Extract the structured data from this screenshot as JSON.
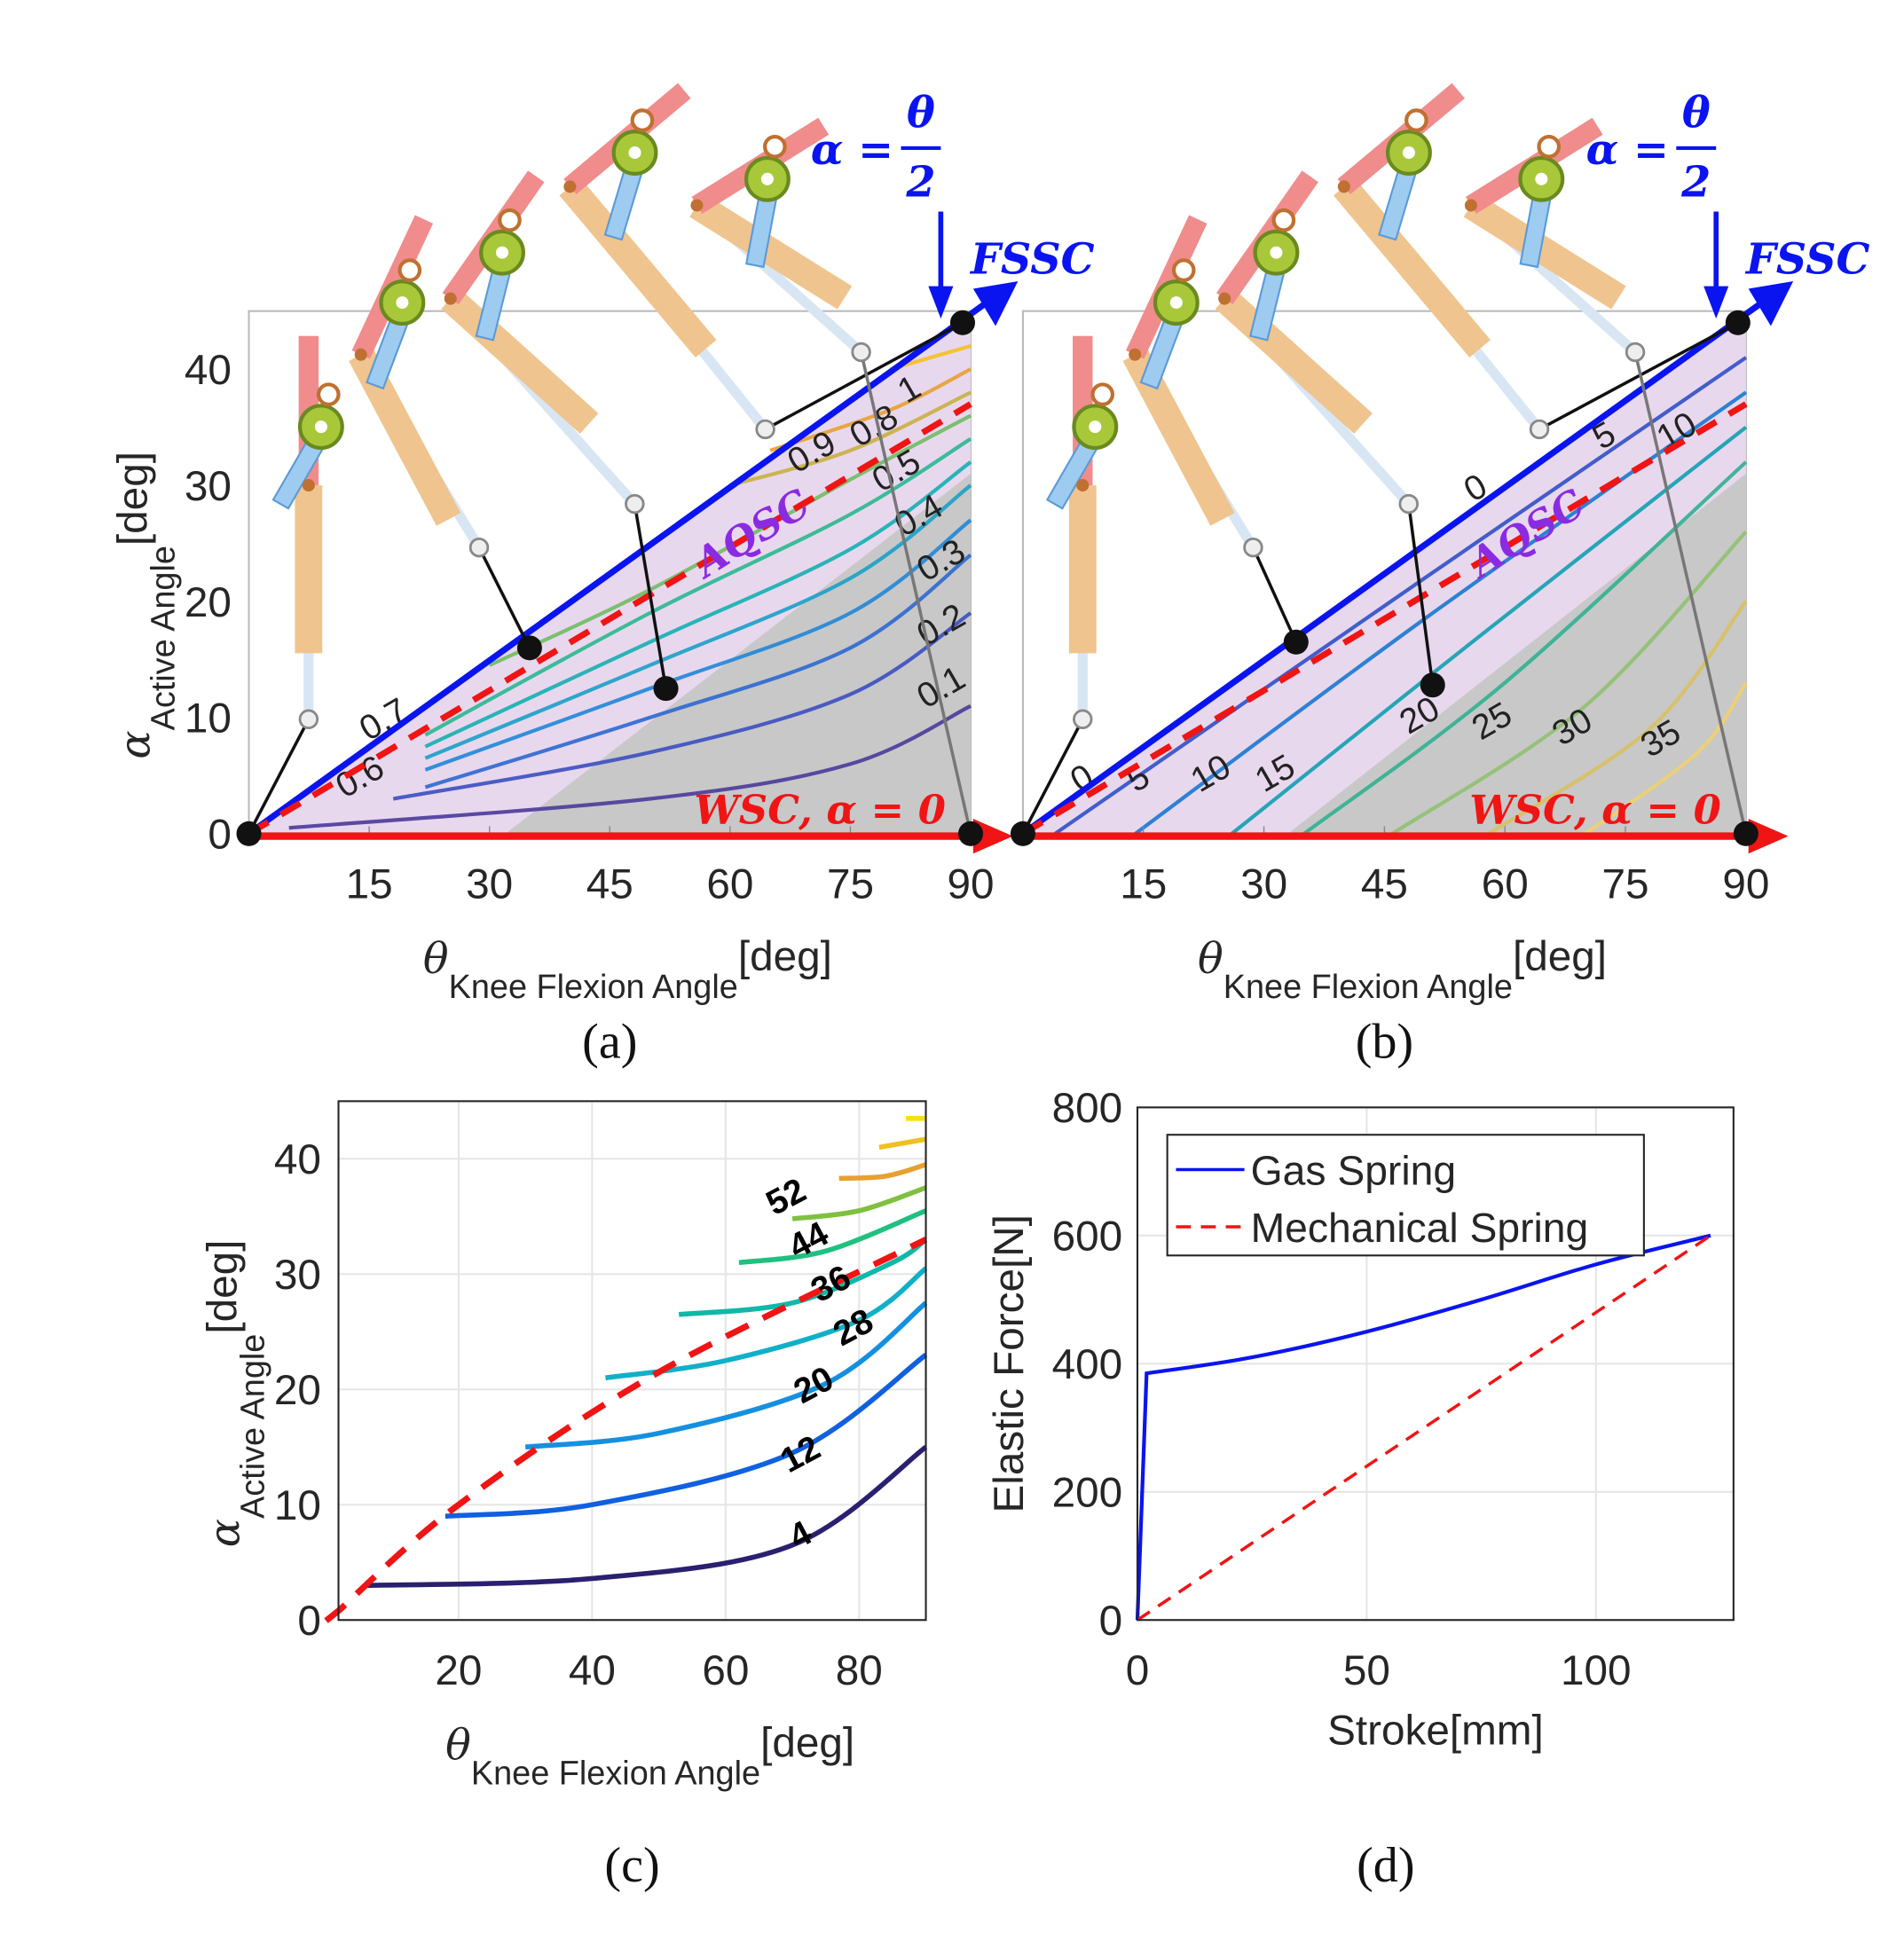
{
  "colors": {
    "fssc": "#0a14f0",
    "wsc": "#f01414",
    "aqsc": "#8a2be2",
    "region": "#e8d8ee",
    "gray": "#c8c8c8",
    "frame": "#262626"
  },
  "chart_data": [
    {
      "id": "a",
      "type": "line",
      "caption": "(a)",
      "xlabel": {
        "sym": "θ",
        "sub": "Knee Flexion Angle",
        "unit": "[deg]"
      },
      "ylabel": {
        "sym": "α",
        "sub": "Active Angle",
        "unit": "[deg]"
      },
      "xlim": [
        0,
        90
      ],
      "ylim": [
        0,
        45
      ],
      "xticks": [
        15,
        30,
        45,
        60,
        75,
        90
      ],
      "yticks": [
        0,
        10,
        20,
        30,
        40
      ],
      "annotations": {
        "equation_lhs": "α =",
        "equation_num": "θ",
        "equation_den": "2",
        "fssc": "FSSC",
        "wsc": "WSC, α = 0",
        "aqsc": "AQSC"
      },
      "fssc_line": [
        [
          0,
          0
        ],
        [
          90,
          45
        ]
      ],
      "aqsc_line": [
        [
          0,
          0
        ],
        [
          90,
          37
        ]
      ],
      "gray_region": [
        [
          32,
          0
        ],
        [
          90,
          0
        ],
        [
          90,
          31
        ]
      ],
      "points": [
        [
          0,
          0
        ],
        [
          35,
          16
        ],
        [
          52,
          12.5
        ],
        [
          89,
          44
        ],
        [
          90,
          0
        ]
      ],
      "contours": [
        {
          "level": "0.1",
          "color": "#4a3a9a",
          "points": [
            [
              5,
              0.5
            ],
            [
              50,
              3
            ],
            [
              75,
              6
            ],
            [
              90,
              11
            ]
          ]
        },
        {
          "level": "0.2",
          "color": "#3b4fc0",
          "points": [
            [
              18,
              3
            ],
            [
              50,
              7
            ],
            [
              75,
              12
            ],
            [
              90,
              19
            ]
          ]
        },
        {
          "level": "0.3",
          "color": "#2c68d0",
          "points": [
            [
              22,
              4
            ],
            [
              50,
              10
            ],
            [
              75,
              16
            ],
            [
              90,
              24
            ]
          ]
        },
        {
          "level": "0.4",
          "color": "#1f86d8",
          "points": [
            [
              22,
              5.5
            ],
            [
              50,
              12.5
            ],
            [
              75,
              19
            ],
            [
              90,
              27
            ]
          ]
        },
        {
          "level": "0.5",
          "color": "#1aa0c8",
          "points": [
            [
              22,
              6.5
            ],
            [
              50,
              14.5
            ],
            [
              75,
              22
            ],
            [
              90,
              30
            ]
          ]
        },
        {
          "level": "0.6",
          "color": "#14b0b0",
          "points": [
            [
              22,
              7.5
            ],
            [
              50,
              16.5
            ],
            [
              75,
              24.5
            ],
            [
              90,
              32
            ]
          ]
        },
        {
          "level": "0.7",
          "color": "#28b890",
          "points": [
            [
              22,
              8.5
            ],
            [
              50,
              19
            ],
            [
              75,
              27.5
            ],
            [
              90,
              34
            ]
          ]
        },
        {
          "level": "0.8",
          "color": "#70bd60",
          "points": [
            [
              30,
              14.5
            ],
            [
              50,
              21
            ],
            [
              75,
              30.5
            ],
            [
              90,
              36
            ]
          ]
        },
        {
          "level": "0.9",
          "color": "#c8b040",
          "points": [
            [
              60,
              30
            ],
            [
              75,
              33
            ],
            [
              90,
              38
            ]
          ]
        },
        {
          "level": "1",
          "color": "#e8a030",
          "points": [
            [
              65,
              33
            ],
            [
              80,
              36.5
            ],
            [
              90,
              40
            ]
          ]
        },
        {
          "level": "",
          "color": "#f5c020",
          "points": [
            [
              80,
              40
            ],
            [
              90,
              42
            ]
          ]
        }
      ],
      "contour_labels": [
        {
          "text": "1",
          "at": [
            82,
            37
          ]
        },
        {
          "text": "0.9",
          "at": [
            69,
            31
          ]
        },
        {
          "text": "0.8",
          "at": [
            79,
            31
          ]
        },
        {
          "text": "0.5",
          "at": [
            81,
            28
          ]
        },
        {
          "text": "0.4",
          "at": [
            82,
            25
          ]
        },
        {
          "text": "0.3",
          "at": [
            83,
            22
          ]
        },
        {
          "text": "0.2",
          "at": [
            82,
            17
          ]
        },
        {
          "text": "0.1",
          "at": [
            82,
            12
          ]
        },
        {
          "text": "0.6",
          "at": [
            12,
            3
          ]
        },
        {
          "text": "0.7",
          "at": [
            16,
            6
          ]
        }
      ]
    },
    {
      "id": "b",
      "type": "line",
      "caption": "(b)",
      "xlabel": {
        "sym": "θ",
        "sub": "Knee Flexion Angle",
        "unit": "[deg]"
      },
      "xlim": [
        0,
        90
      ],
      "ylim": [
        0,
        45
      ],
      "xticks": [
        15,
        30,
        45,
        60,
        75,
        90
      ],
      "annotations": {
        "equation_lhs": "α =",
        "equation_num": "θ",
        "equation_den": "2",
        "fssc": "FSSC",
        "wsc": "WSC, α = 0",
        "aqsc": "AQSC"
      },
      "fssc_line": [
        [
          0,
          0
        ],
        [
          90,
          45
        ]
      ],
      "aqsc_line": [
        [
          0,
          0
        ],
        [
          90,
          37
        ]
      ],
      "gray_region": [
        [
          33,
          0
        ],
        [
          90,
          0
        ],
        [
          90,
          31
        ]
      ],
      "points": [
        [
          0,
          0
        ],
        [
          34,
          16.5
        ],
        [
          51,
          12.8
        ],
        [
          89,
          44
        ],
        [
          90,
          0
        ]
      ],
      "contours": [
        {
          "level": "5",
          "color": "#3050c8",
          "points": [
            [
              4,
              0
            ],
            [
              50,
              22
            ],
            [
              90,
              41
            ]
          ]
        },
        {
          "level": "10",
          "color": "#1878d0",
          "points": [
            [
              14,
              0
            ],
            [
              50,
              18.5
            ],
            [
              90,
              38
            ]
          ]
        },
        {
          "level": "15",
          "color": "#10a0b0",
          "points": [
            [
              26,
              0
            ],
            [
              55,
              16
            ],
            [
              90,
              35
            ]
          ]
        },
        {
          "level": "20",
          "color": "#30b090",
          "points": [
            [
              35,
              0
            ],
            [
              60,
              13
            ],
            [
              90,
              32
            ]
          ]
        },
        {
          "level": "25",
          "color": "#90c070",
          "points": [
            [
              46,
              0
            ],
            [
              70,
              11
            ],
            [
              90,
              26
            ]
          ]
        },
        {
          "level": "30",
          "color": "#d8c060",
          "points": [
            [
              58,
              0
            ],
            [
              78,
              9
            ],
            [
              90,
              20
            ]
          ]
        },
        {
          "level": "35",
          "color": "#f0d070",
          "points": [
            [
              70,
              0
            ],
            [
              84,
              7
            ],
            [
              90,
              13
            ]
          ]
        }
      ],
      "contour_labels": [
        {
          "text": "0",
          "at": [
            7,
            3.5
          ]
        },
        {
          "text": "0",
          "at": [
            56,
            28.5
          ]
        },
        {
          "text": "5",
          "at": [
            14,
            3.5
          ]
        },
        {
          "text": "5",
          "at": [
            72,
            33
          ]
        },
        {
          "text": "10",
          "at": [
            22,
            3.5
          ]
        },
        {
          "text": "10",
          "at": [
            80,
            33
          ]
        },
        {
          "text": "15",
          "at": [
            30,
            3.5
          ]
        },
        {
          "text": "20",
          "at": [
            48,
            8.5
          ]
        },
        {
          "text": "25",
          "at": [
            57,
            8
          ]
        },
        {
          "text": "30",
          "at": [
            67,
            7.5
          ]
        },
        {
          "text": "35",
          "at": [
            78,
            6.5
          ]
        }
      ]
    },
    {
      "id": "c",
      "type": "line",
      "caption": "(c)",
      "xlabel": {
        "sym": "θ",
        "sub": "Knee Flexion Angle",
        "unit": "[deg]"
      },
      "ylabel": {
        "sym": "α",
        "sub": "Active Angle",
        "unit": "[deg]"
      },
      "xlim": [
        2,
        90
      ],
      "ylim": [
        0,
        45
      ],
      "grid": true,
      "xticks": [
        20,
        40,
        60,
        80
      ],
      "yticks": [
        0,
        10,
        20,
        30,
        40
      ],
      "dashed_line": [
        [
          2,
          0.8
        ],
        [
          20,
          10
        ],
        [
          50,
          21.5
        ],
        [
          90,
          33
        ]
      ],
      "contours": [
        {
          "level": "4",
          "color": "#2a2070",
          "points": [
            [
              6,
              3
            ],
            [
              40,
              3.6
            ],
            [
              70,
              6.5
            ],
            [
              90,
              15
            ]
          ]
        },
        {
          "level": "12",
          "color": "#1060e0",
          "points": [
            [
              18,
              9
            ],
            [
              40,
              10
            ],
            [
              70,
              14.5
            ],
            [
              90,
              23
            ]
          ]
        },
        {
          "level": "20",
          "color": "#1590e0",
          "points": [
            [
              30,
              15
            ],
            [
              50,
              16.2
            ],
            [
              75,
              20.5
            ],
            [
              90,
              27.5
            ]
          ]
        },
        {
          "level": "28",
          "color": "#10b0c8",
          "points": [
            [
              42,
              21
            ],
            [
              60,
              22.5
            ],
            [
              80,
              26
            ],
            [
              90,
              30.5
            ]
          ]
        },
        {
          "level": "36",
          "color": "#10b8a8",
          "points": [
            [
              53,
              26.5
            ],
            [
              70,
              27.5
            ],
            [
              85,
              31
            ],
            [
              90,
              33
            ]
          ]
        },
        {
          "level": "44",
          "color": "#20c080",
          "points": [
            [
              62,
              31
            ],
            [
              75,
              32
            ],
            [
              90,
              35.5
            ]
          ]
        },
        {
          "level": "52",
          "color": "#80c040",
          "points": [
            [
              70,
              34.8
            ],
            [
              80,
              35.5
            ],
            [
              90,
              37.5
            ]
          ]
        },
        {
          "level": "",
          "color": "#e8a030",
          "points": [
            [
              77,
              38.3
            ],
            [
              84,
              38.5
            ],
            [
              90,
              39.5
            ]
          ]
        },
        {
          "level": "",
          "color": "#f0c020",
          "points": [
            [
              83,
              41
            ],
            [
              90,
              41.7
            ]
          ]
        },
        {
          "level": "",
          "color": "#f8e010",
          "points": [
            [
              87,
              43.5
            ],
            [
              90,
              43.5
            ]
          ]
        }
      ],
      "contour_labels": [
        {
          "text": "4",
          "at": [
            72,
            6.5
          ]
        },
        {
          "text": "12",
          "at": [
            72,
            13.5
          ]
        },
        {
          "text": "20",
          "at": [
            74,
            19.5
          ]
        },
        {
          "text": "28",
          "at": [
            77,
            25
          ]
        },
        {
          "text": "36",
          "at": [
            78,
            28.5
          ]
        },
        {
          "text": "44",
          "at": [
            80,
            31.5
          ]
        },
        {
          "text": "52",
          "at": [
            80,
            34.5
          ]
        }
      ]
    },
    {
      "id": "d",
      "type": "line",
      "caption": "(d)",
      "xlabel": "Stroke[mm]",
      "ylabel": "Elastic Force[N]",
      "xlim": [
        0,
        130
      ],
      "ylim": [
        0,
        800
      ],
      "grid": true,
      "xticks": [
        0,
        50,
        100
      ],
      "yticks": [
        0,
        200,
        400,
        600,
        800
      ],
      "legend": "top-left",
      "series": [
        {
          "name": "Gas Spring",
          "color": "#0a14f0",
          "style": "solid",
          "points": [
            [
              0,
              0
            ],
            [
              2,
              385
            ],
            [
              25,
              410
            ],
            [
              50,
              450
            ],
            [
              75,
              500
            ],
            [
              100,
              555
            ],
            [
              125,
              600
            ]
          ]
        },
        {
          "name": "Mechanical Spring",
          "color": "#f01414",
          "style": "dashed",
          "points": [
            [
              0,
              0
            ],
            [
              125,
              600
            ]
          ]
        }
      ]
    }
  ]
}
